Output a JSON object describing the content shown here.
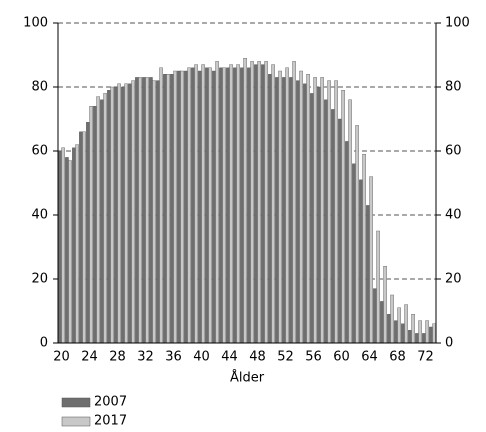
{
  "chart_data": {
    "type": "bar",
    "xlabel": "Ålder",
    "categories": [
      "20",
      null,
      null,
      null,
      "24",
      null,
      null,
      null,
      "28",
      null,
      null,
      null,
      "32",
      null,
      null,
      null,
      "36",
      null,
      null,
      null,
      "40",
      null,
      null,
      null,
      "44",
      null,
      null,
      null,
      "48",
      null,
      null,
      null,
      "52",
      null,
      null,
      null,
      "56",
      null,
      null,
      null,
      "60",
      null,
      null,
      null,
      "64",
      null,
      null,
      null,
      "68",
      null,
      null,
      null,
      "72",
      null
    ],
    "series": [
      {
        "name": "2007",
        "color": "#6e6e6e",
        "values": [
          60,
          58,
          61,
          66,
          69,
          74,
          76,
          79,
          80,
          80,
          81,
          83,
          83,
          83,
          82,
          84,
          84,
          85,
          85,
          86,
          85,
          86,
          85,
          86,
          86,
          86,
          86,
          86,
          87,
          87,
          84,
          83,
          83,
          83,
          82,
          81,
          78,
          80,
          76,
          73,
          70,
          63,
          56,
          51,
          43,
          17,
          13,
          9,
          7,
          6,
          4,
          3,
          3,
          5
        ]
      },
      {
        "name": "2017",
        "color": "#c8c8c8",
        "values": [
          61,
          57,
          62,
          66,
          74,
          77,
          78,
          80,
          81,
          81,
          82,
          83,
          83,
          82,
          86,
          84,
          85,
          85,
          86,
          87,
          87,
          86,
          88,
          86,
          87,
          87,
          89,
          88,
          88,
          88,
          87,
          85,
          86,
          88,
          85,
          84,
          83,
          83,
          82,
          82,
          79,
          76,
          68,
          59,
          52,
          35,
          24,
          15,
          11,
          12,
          9,
          7,
          7,
          6
        ]
      }
    ],
    "ylim": [
      0,
      100
    ],
    "yticks": [
      0,
      20,
      40,
      60,
      80,
      100
    ],
    "y2lim": [
      0,
      100
    ],
    "y2ticks": [
      0,
      20,
      40,
      60,
      80,
      100
    ],
    "grid": true
  }
}
